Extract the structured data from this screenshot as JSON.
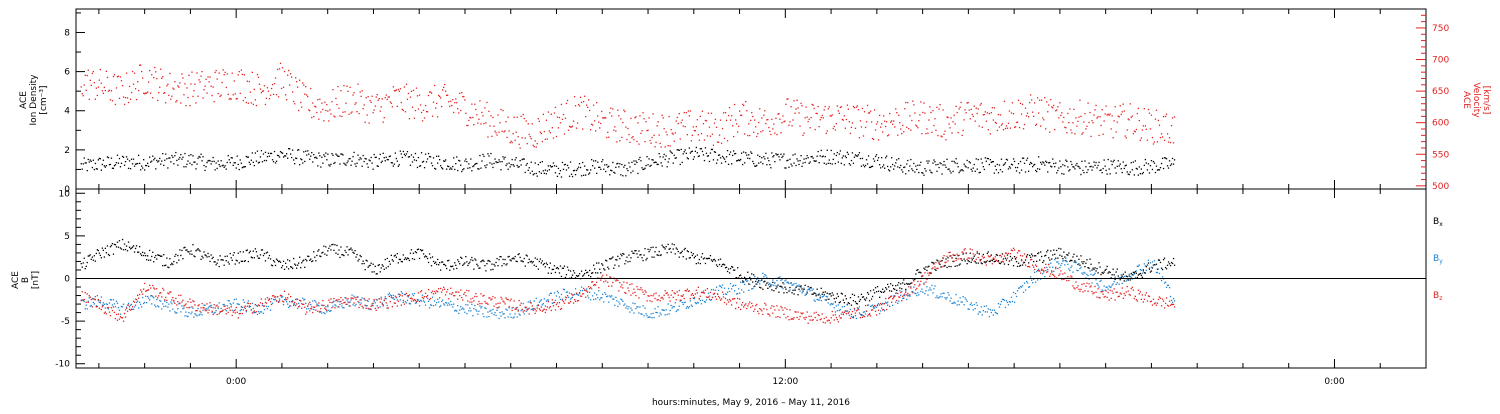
{
  "colors": {
    "black": "#000000",
    "red": "#e32222",
    "blue": "#1f86d6",
    "background": "#ffffff"
  },
  "chart_data": [
    {
      "type": "scatter",
      "panel": "ion-density-velocity",
      "ylabel_left": [
        "ACE",
        "Ion Density",
        "[cm⁻³]"
      ],
      "ylabel_right": [
        "ACE",
        "Velocity",
        "[km/s]"
      ],
      "ylim_left": [
        0,
        9.2
      ],
      "ylim_right": [
        495,
        780
      ],
      "yticks_left": [
        "0",
        "2",
        "4",
        "6",
        "8"
      ],
      "yticks_right": [
        "500",
        "550",
        "600",
        "650",
        "700",
        "750"
      ],
      "grid": false,
      "series": [
        {
          "axis": "left",
          "color": "#000000",
          "x": [
            -3.4,
            -3.0,
            -2.5,
            -2.0,
            -1.5,
            -1.0,
            -0.5,
            0.0,
            0.5,
            1.0,
            1.5,
            2.0,
            2.5,
            3.0,
            3.5,
            4.0,
            4.5,
            5.0,
            5.5,
            6.0,
            6.5,
            7.0,
            7.5,
            8.0,
            8.5,
            9.0,
            9.5,
            10.0,
            10.5,
            11.0,
            11.5,
            12.0,
            12.5,
            13.0,
            13.5,
            14.0,
            14.5,
            15.0,
            15.5,
            16.0,
            16.5,
            17.0,
            17.5,
            18.0,
            18.5,
            19.0,
            19.5,
            20.0,
            20.5
          ],
          "y": [
            1.2,
            1.3,
            1.4,
            1.4,
            1.5,
            1.5,
            1.3,
            1.4,
            1.6,
            1.8,
            1.6,
            1.5,
            1.6,
            1.4,
            1.6,
            1.5,
            1.4,
            1.3,
            1.5,
            1.3,
            1.1,
            1.0,
            1.1,
            1.2,
            1.0,
            1.4,
            1.6,
            1.8,
            1.7,
            1.6,
            1.5,
            1.5,
            1.6,
            1.7,
            1.6,
            1.5,
            1.2,
            1.1,
            1.2,
            1.3,
            1.2,
            1.2,
            1.3,
            1.2,
            1.1,
            1.2,
            1.1,
            1.2,
            1.3
          ]
        },
        {
          "axis": "right",
          "color": "#e32222",
          "x": [
            -3.4,
            -3.0,
            -2.5,
            -2.0,
            -1.5,
            -1.0,
            -0.5,
            0.0,
            0.5,
            1.0,
            1.5,
            2.0,
            2.5,
            3.0,
            3.5,
            4.0,
            4.5,
            5.0,
            5.5,
            6.0,
            6.5,
            7.0,
            7.5,
            8.0,
            8.5,
            9.0,
            9.5,
            10.0,
            10.5,
            11.0,
            11.5,
            12.0,
            12.5,
            13.0,
            13.5,
            14.0,
            14.5,
            15.0,
            15.5,
            16.0,
            16.5,
            17.0,
            17.5,
            18.0,
            18.5,
            19.0,
            19.5,
            20.0,
            20.5
          ],
          "y": [
            665,
            660,
            650,
            672,
            656,
            655,
            660,
            665,
            652,
            670,
            632,
            625,
            640,
            622,
            638,
            630,
            635,
            625,
            605,
            590,
            585,
            605,
            620,
            600,
            595,
            590,
            590,
            595,
            590,
            610,
            600,
            615,
            605,
            610,
            605,
            600,
            605,
            610,
            600,
            612,
            610,
            615,
            620,
            605,
            610,
            600,
            605,
            595,
            590
          ]
        }
      ]
    },
    {
      "type": "scatter",
      "panel": "magnetic-field",
      "ylabel": [
        "ACE",
        "B",
        "[nT]"
      ],
      "ylim": [
        -10.5,
        10.5
      ],
      "yticks": [
        "-10",
        "-5",
        "0",
        "5",
        "10"
      ],
      "legend_placement": "right",
      "grid": false,
      "series": [
        {
          "name": "B",
          "subscript": "x",
          "color": "#000000",
          "x": [
            -3.4,
            -3.0,
            -2.5,
            -2.0,
            -1.5,
            -1.0,
            -0.5,
            0.0,
            0.5,
            1.0,
            1.5,
            2.0,
            2.5,
            3.0,
            3.5,
            4.0,
            4.5,
            5.0,
            5.5,
            6.0,
            6.5,
            7.0,
            7.5,
            8.0,
            8.5,
            9.0,
            9.5,
            10.0,
            10.5,
            11.0,
            11.5,
            12.0,
            12.5,
            13.0,
            13.5,
            14.0,
            14.5,
            15.0,
            15.5,
            16.0,
            16.5,
            17.0,
            17.5,
            18.0,
            18.5,
            19.0,
            19.5,
            20.0,
            20.5
          ],
          "y": [
            1.5,
            3.0,
            4.0,
            3.0,
            2.0,
            3.5,
            2.0,
            2.5,
            3.0,
            1.5,
            2.0,
            3.5,
            3.0,
            1.0,
            2.5,
            3.0,
            1.5,
            2.0,
            1.5,
            2.5,
            2.0,
            1.0,
            0.5,
            1.5,
            2.5,
            3.0,
            3.5,
            2.5,
            2.0,
            0.5,
            -0.5,
            -1.0,
            -1.5,
            -2.0,
            -2.5,
            -1.5,
            -1.0,
            1.0,
            2.0,
            2.5,
            2.5,
            2.0,
            2.5,
            3.0,
            2.0,
            1.0,
            0.0,
            1.5,
            2.0
          ]
        },
        {
          "name": "B",
          "subscript": "y",
          "color": "#1f86d6",
          "x": [
            -3.4,
            -3.0,
            -2.5,
            -2.0,
            -1.5,
            -1.0,
            -0.5,
            0.0,
            0.5,
            1.0,
            1.5,
            2.0,
            2.5,
            3.0,
            3.5,
            4.0,
            4.5,
            5.0,
            5.5,
            6.0,
            6.5,
            7.0,
            7.5,
            8.0,
            8.5,
            9.0,
            9.5,
            10.0,
            10.5,
            11.0,
            11.5,
            12.0,
            12.5,
            13.0,
            13.5,
            14.0,
            14.5,
            15.0,
            15.5,
            16.0,
            16.5,
            17.0,
            17.5,
            18.0,
            18.5,
            19.0,
            19.5,
            20.0,
            20.5
          ],
          "y": [
            -3.0,
            -2.5,
            -3.5,
            -2.5,
            -3.0,
            -4.0,
            -3.5,
            -3.0,
            -3.5,
            -2.5,
            -3.0,
            -3.5,
            -2.5,
            -3.0,
            -2.0,
            -2.5,
            -3.0,
            -3.5,
            -4.0,
            -4.0,
            -3.0,
            -2.0,
            -1.5,
            -2.0,
            -3.0,
            -4.0,
            -3.5,
            -2.5,
            -1.5,
            -1.0,
            0.0,
            -0.5,
            -1.5,
            -3.0,
            -4.0,
            -3.5,
            -2.0,
            -1.0,
            -2.0,
            -3.0,
            -4.0,
            -2.0,
            0.5,
            2.0,
            1.0,
            -1.0,
            0.5,
            2.0,
            -2.5
          ]
        },
        {
          "name": "B",
          "subscript": "z",
          "color": "#e32222",
          "x": [
            -3.4,
            -3.0,
            -2.5,
            -2.0,
            -1.5,
            -1.0,
            -0.5,
            0.0,
            0.5,
            1.0,
            1.5,
            2.0,
            2.5,
            3.0,
            3.5,
            4.0,
            4.5,
            5.0,
            5.5,
            6.0,
            6.5,
            7.0,
            7.5,
            8.0,
            8.5,
            9.0,
            9.5,
            10.0,
            10.5,
            11.0,
            11.5,
            12.0,
            12.5,
            13.0,
            13.5,
            14.0,
            14.5,
            15.0,
            15.5,
            16.0,
            16.5,
            17.0,
            17.5,
            18.0,
            18.5,
            19.0,
            19.5,
            20.0,
            20.5
          ],
          "y": [
            -2.0,
            -3.0,
            -4.5,
            -1.0,
            -2.0,
            -3.0,
            -3.5,
            -4.0,
            -3.0,
            -2.0,
            -3.5,
            -3.0,
            -2.5,
            -3.0,
            -2.5,
            -2.0,
            -1.5,
            -2.0,
            -2.5,
            -3.0,
            -3.5,
            -3.0,
            -2.0,
            0.0,
            -1.0,
            -2.0,
            -2.0,
            -1.5,
            -2.0,
            -3.0,
            -3.5,
            -4.0,
            -4.5,
            -4.5,
            -4.0,
            -3.5,
            -2.0,
            0.0,
            2.5,
            3.0,
            2.0,
            3.0,
            1.5,
            0.5,
            -1.0,
            -2.0,
            -1.5,
            -2.5,
            -3.0
          ]
        }
      ]
    }
  ],
  "xaxis": {
    "range_hours": [
      -3.5,
      26.0
    ],
    "major_ticks": [
      {
        "hour": 0,
        "label": "0:00"
      },
      {
        "hour": 12,
        "label": "12:00"
      },
      {
        "hour": 24,
        "label": "0:00"
      }
    ],
    "xlabel": "hours:minutes, May  9, 2016 – May 11, 2016"
  }
}
